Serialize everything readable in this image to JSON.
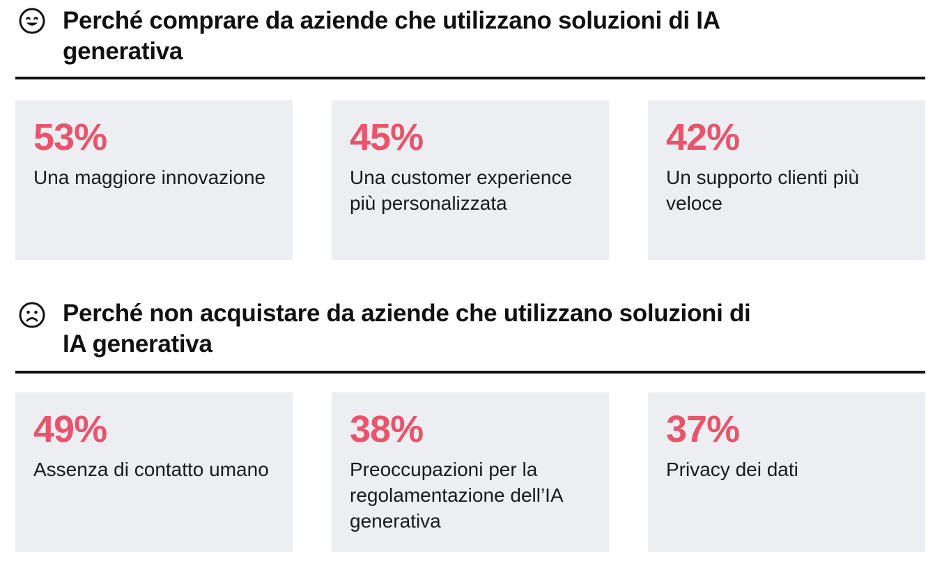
{
  "positive": {
    "icon": "smiling-face-icon",
    "title": "Perché comprare da aziende che utilizzano soluzioni di IA generativa",
    "items": [
      {
        "stat": "53%",
        "label": "Una maggiore innovazione"
      },
      {
        "stat": "45%",
        "label": "Una customer experience più personalizzata"
      },
      {
        "stat": "42%",
        "label": "Un supporto clienti più veloce"
      }
    ]
  },
  "negative": {
    "icon": "frowning-face-icon",
    "title": "Perché non acquistare da aziende che utilizzano soluzioni di IA generativa",
    "items": [
      {
        "stat": "49%",
        "label": "Assenza di contatto umano"
      },
      {
        "stat": "38%",
        "label": "Preoccupazioni per la regolamentazione dell’IA generativa"
      },
      {
        "stat": "37%",
        "label": "Privacy dei dati"
      }
    ]
  },
  "colors": {
    "accent": "#e8546c",
    "card_background": "#eceef1",
    "rule": "#111111"
  }
}
